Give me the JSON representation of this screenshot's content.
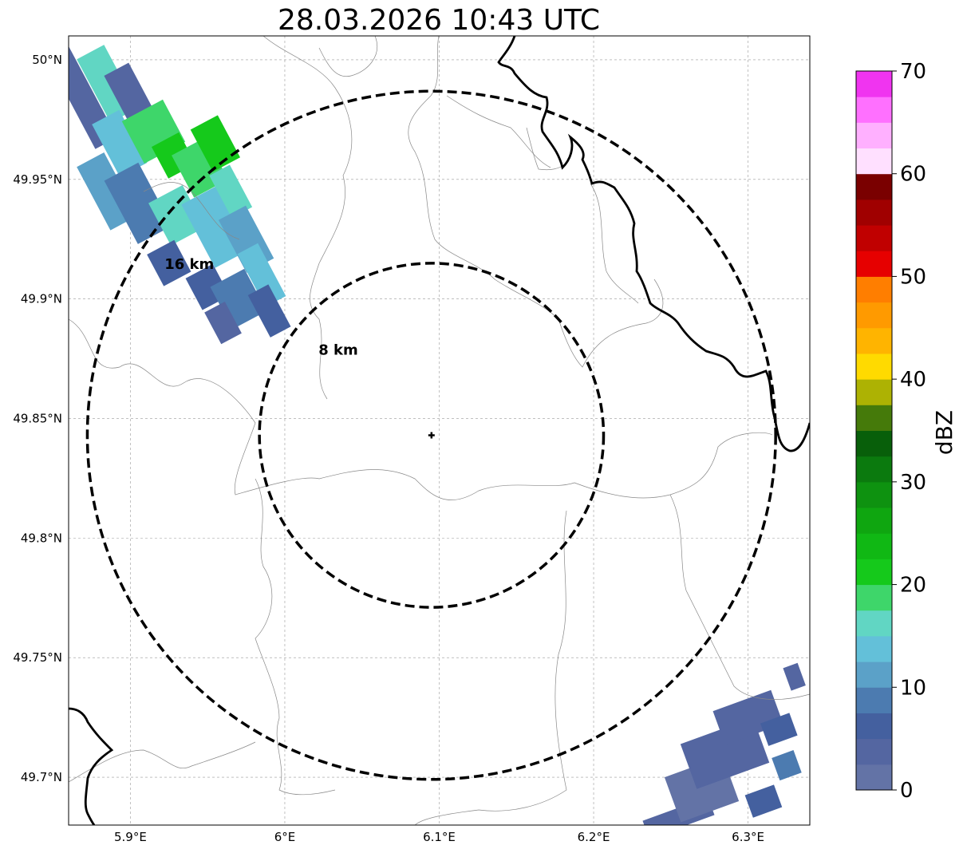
{
  "title": "28.03.2026 10:43 UTC",
  "map": {
    "lon_range": [
      5.86,
      6.34
    ],
    "lat_range": [
      49.68,
      50.01
    ],
    "lon_ticks": [
      {
        "value": 5.9,
        "label": "5.9°E"
      },
      {
        "value": 6.0,
        "label": "6°E"
      },
      {
        "value": 6.1,
        "label": "6.1°E"
      },
      {
        "value": 6.2,
        "label": "6.2°E"
      },
      {
        "value": 6.3,
        "label": "6.3°E"
      }
    ],
    "lat_ticks": [
      {
        "value": 49.7,
        "label": "49.7°N"
      },
      {
        "value": 49.75,
        "label": "49.75°N"
      },
      {
        "value": 49.8,
        "label": "49.8°N"
      },
      {
        "value": 49.85,
        "label": "49.85°N"
      },
      {
        "value": 49.9,
        "label": "49.9°N"
      },
      {
        "value": 49.95,
        "label": "49.95°N"
      },
      {
        "value": 50.0,
        "label": "50°N"
      }
    ],
    "radar_site": {
      "lon": 6.095,
      "lat": 49.843
    },
    "range_rings": [
      {
        "radius_km": 8,
        "label": "8 km"
      },
      {
        "radius_km": 16,
        "label": "16 km"
      }
    ]
  },
  "colorbar": {
    "label": "dBZ",
    "min": 0,
    "max": 70,
    "step": 2.5,
    "ticks": [
      {
        "value": 0,
        "label": "0"
      },
      {
        "value": 10,
        "label": "10"
      },
      {
        "value": 20,
        "label": "20"
      },
      {
        "value": 30,
        "label": "30"
      },
      {
        "value": 40,
        "label": "40"
      },
      {
        "value": 50,
        "label": "50"
      },
      {
        "value": 60,
        "label": "60"
      },
      {
        "value": 70,
        "label": "70"
      }
    ],
    "colors": [
      "#6373a6",
      "#5466a1",
      "#44609f",
      "#4c7bb0",
      "#5ba1c8",
      "#63c0d9",
      "#61d6c3",
      "#3ed66a",
      "#15c91b",
      "#10b814",
      "#0fa610",
      "#0e9210",
      "#0b7a0e",
      "#085f0a",
      "#457a0a",
      "#adb203",
      "#ffda00",
      "#ffb400",
      "#ff9a00",
      "#ff7e00",
      "#e60000",
      "#c00000",
      "#a00000",
      "#7a0000",
      "#ffe0ff",
      "#ffb0ff",
      "#ff70ff",
      "#f034f0"
    ]
  },
  "echoes": {
    "nw_cells": [
      {
        "lon": 5.868,
        "lat": 49.985,
        "w": 0.016,
        "h": 0.045,
        "dbz": 3
      },
      {
        "lon": 5.885,
        "lat": 49.99,
        "w": 0.02,
        "h": 0.03,
        "dbz": 16
      },
      {
        "lon": 5.9,
        "lat": 49.985,
        "w": 0.018,
        "h": 0.025,
        "dbz": 4
      },
      {
        "lon": 5.893,
        "lat": 49.965,
        "w": 0.02,
        "h": 0.025,
        "dbz": 14
      },
      {
        "lon": 5.915,
        "lat": 49.97,
        "w": 0.03,
        "h": 0.02,
        "dbz": 18
      },
      {
        "lon": 5.928,
        "lat": 49.96,
        "w": 0.02,
        "h": 0.015,
        "dbz": 20
      },
      {
        "lon": 5.945,
        "lat": 49.955,
        "w": 0.025,
        "h": 0.02,
        "dbz": 19
      },
      {
        "lon": 5.955,
        "lat": 49.965,
        "w": 0.02,
        "h": 0.02,
        "dbz": 21
      },
      {
        "lon": 5.885,
        "lat": 49.945,
        "w": 0.02,
        "h": 0.03,
        "dbz": 12
      },
      {
        "lon": 5.905,
        "lat": 49.94,
        "w": 0.025,
        "h": 0.03,
        "dbz": 9
      },
      {
        "lon": 5.93,
        "lat": 49.935,
        "w": 0.025,
        "h": 0.02,
        "dbz": 15
      },
      {
        "lon": 5.955,
        "lat": 49.93,
        "w": 0.025,
        "h": 0.03,
        "dbz": 13
      },
      {
        "lon": 5.965,
        "lat": 49.945,
        "w": 0.015,
        "h": 0.02,
        "dbz": 17
      },
      {
        "lon": 5.975,
        "lat": 49.925,
        "w": 0.02,
        "h": 0.025,
        "dbz": 10
      },
      {
        "lon": 5.925,
        "lat": 49.915,
        "w": 0.02,
        "h": 0.015,
        "dbz": 5
      },
      {
        "lon": 5.95,
        "lat": 49.905,
        "w": 0.02,
        "h": 0.015,
        "dbz": 6
      },
      {
        "lon": 5.97,
        "lat": 49.9,
        "w": 0.025,
        "h": 0.02,
        "dbz": 8
      },
      {
        "lon": 5.985,
        "lat": 49.91,
        "w": 0.015,
        "h": 0.025,
        "dbz": 14
      },
      {
        "lon": 5.99,
        "lat": 49.895,
        "w": 0.015,
        "h": 0.02,
        "dbz": 5
      },
      {
        "lon": 5.96,
        "lat": 49.89,
        "w": 0.015,
        "h": 0.015,
        "dbz": 4
      }
    ],
    "se_cells": [
      {
        "lon": 6.255,
        "lat": 49.683,
        "w": 0.045,
        "h": 0.008,
        "dbz": 3
      },
      {
        "lon": 6.27,
        "lat": 49.695,
        "w": 0.04,
        "h": 0.02,
        "dbz": 2
      },
      {
        "lon": 6.285,
        "lat": 49.71,
        "w": 0.05,
        "h": 0.02,
        "dbz": 3
      },
      {
        "lon": 6.3,
        "lat": 49.725,
        "w": 0.04,
        "h": 0.015,
        "dbz": 4
      },
      {
        "lon": 6.32,
        "lat": 49.72,
        "w": 0.02,
        "h": 0.01,
        "dbz": 6
      },
      {
        "lon": 6.325,
        "lat": 49.705,
        "w": 0.015,
        "h": 0.01,
        "dbz": 8
      },
      {
        "lon": 6.33,
        "lat": 49.742,
        "w": 0.01,
        "h": 0.01,
        "dbz": 3
      },
      {
        "lon": 6.31,
        "lat": 49.69,
        "w": 0.02,
        "h": 0.01,
        "dbz": 5
      }
    ]
  }
}
